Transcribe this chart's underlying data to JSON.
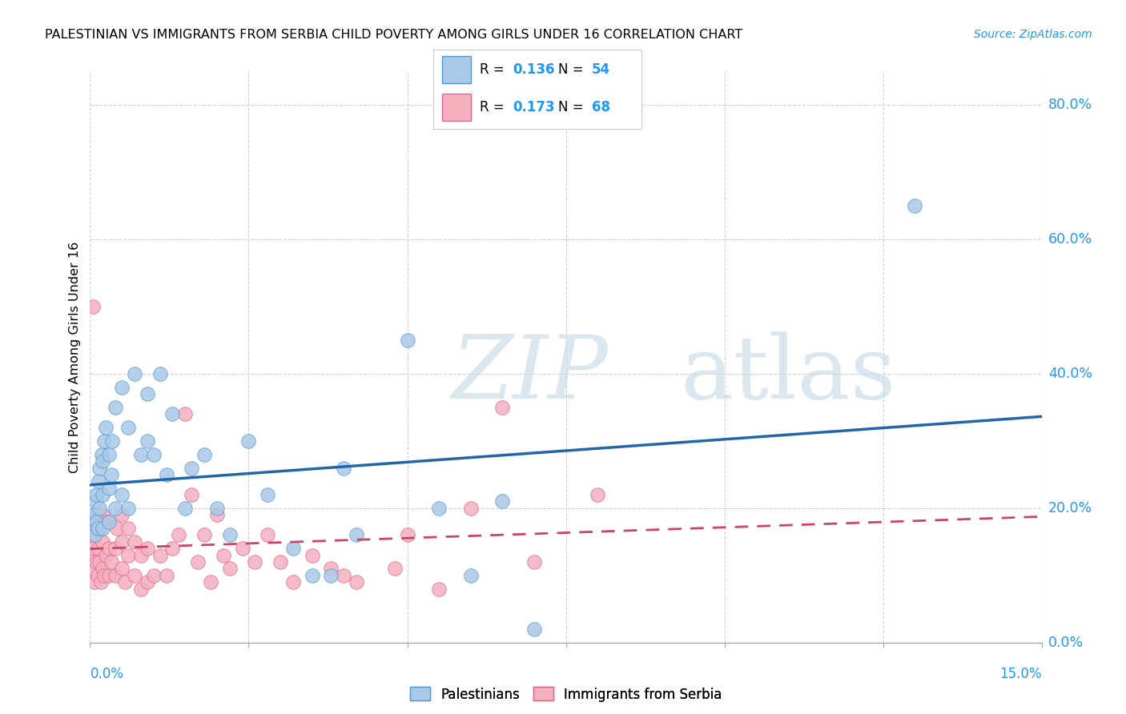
{
  "title": "PALESTINIAN VS IMMIGRANTS FROM SERBIA CHILD POVERTY AMONG GIRLS UNDER 16 CORRELATION CHART",
  "source": "Source: ZipAtlas.com",
  "ylabel": "Child Poverty Among Girls Under 16",
  "x_min": 0.0,
  "x_max": 0.15,
  "y_min": 0.0,
  "y_max": 0.85,
  "blue_fill": "#aac8e8",
  "blue_edge": "#5599cc",
  "blue_line": "#2266aa",
  "pink_fill": "#f5b0c0",
  "pink_edge": "#dd6688",
  "pink_line": "#cc4466",
  "accent_blue": "#2196F3",
  "R_blue": 0.136,
  "N_blue": 54,
  "R_pink": 0.173,
  "N_pink": 68,
  "blue_scatter_x": [
    0.0003,
    0.0005,
    0.0006,
    0.0007,
    0.0008,
    0.001,
    0.001,
    0.0012,
    0.0013,
    0.0015,
    0.0015,
    0.0018,
    0.002,
    0.002,
    0.002,
    0.0022,
    0.0025,
    0.003,
    0.003,
    0.003,
    0.0033,
    0.0035,
    0.004,
    0.004,
    0.005,
    0.005,
    0.006,
    0.006,
    0.007,
    0.008,
    0.009,
    0.009,
    0.01,
    0.011,
    0.012,
    0.013,
    0.015,
    0.016,
    0.018,
    0.02,
    0.022,
    0.025,
    0.028,
    0.032,
    0.035,
    0.038,
    0.04,
    0.042,
    0.05,
    0.055,
    0.06,
    0.065,
    0.07,
    0.13
  ],
  "blue_scatter_y": [
    0.185,
    0.19,
    0.175,
    0.16,
    0.21,
    0.18,
    0.22,
    0.17,
    0.24,
    0.2,
    0.26,
    0.28,
    0.17,
    0.22,
    0.27,
    0.3,
    0.32,
    0.18,
    0.23,
    0.28,
    0.25,
    0.3,
    0.2,
    0.35,
    0.22,
    0.38,
    0.2,
    0.32,
    0.4,
    0.28,
    0.3,
    0.37,
    0.28,
    0.4,
    0.25,
    0.34,
    0.2,
    0.26,
    0.28,
    0.2,
    0.16,
    0.3,
    0.22,
    0.14,
    0.1,
    0.1,
    0.26,
    0.16,
    0.45,
    0.2,
    0.1,
    0.21,
    0.02,
    0.65
  ],
  "pink_scatter_x": [
    0.0002,
    0.0003,
    0.0004,
    0.0005,
    0.0006,
    0.0007,
    0.0008,
    0.001,
    0.001,
    0.0012,
    0.0013,
    0.0015,
    0.0015,
    0.0017,
    0.002,
    0.002,
    0.002,
    0.0022,
    0.0025,
    0.0025,
    0.003,
    0.003,
    0.003,
    0.0033,
    0.004,
    0.004,
    0.0042,
    0.005,
    0.005,
    0.005,
    0.0055,
    0.006,
    0.006,
    0.007,
    0.007,
    0.008,
    0.008,
    0.009,
    0.009,
    0.01,
    0.011,
    0.012,
    0.013,
    0.014,
    0.015,
    0.016,
    0.017,
    0.018,
    0.019,
    0.02,
    0.021,
    0.022,
    0.024,
    0.026,
    0.028,
    0.03,
    0.032,
    0.035,
    0.038,
    0.04,
    0.042,
    0.048,
    0.05,
    0.055,
    0.06,
    0.065,
    0.07,
    0.08
  ],
  "pink_scatter_y": [
    0.13,
    0.16,
    0.11,
    0.5,
    0.14,
    0.09,
    0.17,
    0.12,
    0.16,
    0.1,
    0.14,
    0.12,
    0.17,
    0.09,
    0.11,
    0.15,
    0.19,
    0.1,
    0.13,
    0.18,
    0.1,
    0.14,
    0.18,
    0.12,
    0.1,
    0.14,
    0.17,
    0.11,
    0.15,
    0.19,
    0.09,
    0.13,
    0.17,
    0.1,
    0.15,
    0.08,
    0.13,
    0.09,
    0.14,
    0.1,
    0.13,
    0.1,
    0.14,
    0.16,
    0.34,
    0.22,
    0.12,
    0.16,
    0.09,
    0.19,
    0.13,
    0.11,
    0.14,
    0.12,
    0.16,
    0.12,
    0.09,
    0.13,
    0.11,
    0.1,
    0.09,
    0.11,
    0.16,
    0.08,
    0.2,
    0.35,
    0.12,
    0.22
  ]
}
